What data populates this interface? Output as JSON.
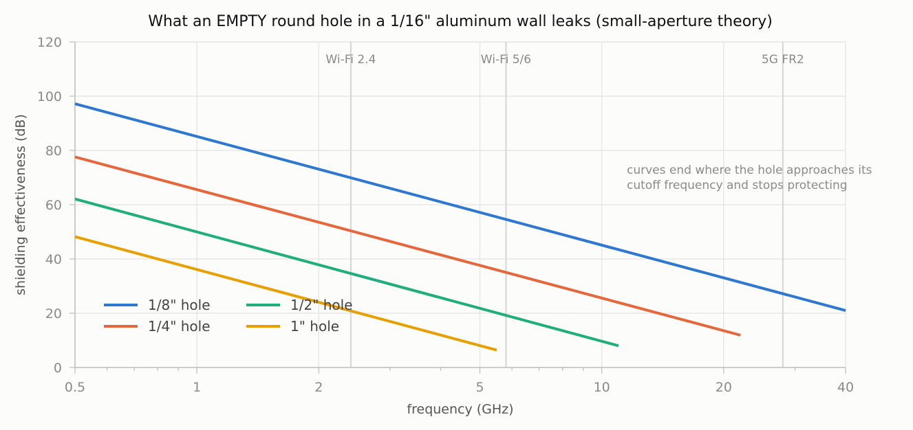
{
  "chart_data": {
    "type": "line",
    "title": "What an EMPTY round hole in a 1/16\" aluminum wall leaks (small-aperture theory)",
    "xlabel": "frequency (GHz)",
    "ylabel": "shielding effectiveness (dB)",
    "x_scale": "log",
    "xlim": [
      0.5,
      40
    ],
    "ylim": [
      0,
      120
    ],
    "x_ticks": [
      0.5,
      1,
      2,
      5,
      10,
      20,
      40
    ],
    "x_tick_labels": [
      "0.5",
      "1",
      "2",
      "5",
      "10",
      "20",
      "40"
    ],
    "y_ticks": [
      0,
      20,
      40,
      60,
      80,
      100,
      120
    ],
    "y_tick_labels": [
      "0",
      "20",
      "40",
      "60",
      "80",
      "100",
      "120"
    ],
    "grid": true,
    "legend_position": "lower-left",
    "series": [
      {
        "name": "1/8\" hole",
        "color": "#2e78d2",
        "x": [
          0.5,
          40
        ],
        "y": [
          97.2,
          21.0
        ]
      },
      {
        "name": "1/4\" hole",
        "color": "#e5673b",
        "x": [
          0.5,
          22
        ],
        "y": [
          77.6,
          11.9
        ]
      },
      {
        "name": "1/2\" hole",
        "color": "#1fae7c",
        "x": [
          0.5,
          11
        ],
        "y": [
          62.1,
          8.0
        ]
      },
      {
        "name": "1\" hole",
        "color": "#e8a000",
        "x": [
          0.5,
          5.5
        ],
        "y": [
          48.2,
          6.4
        ]
      }
    ],
    "bands": [
      {
        "label": "Wi-Fi 2.4",
        "x": 2.4
      },
      {
        "label": "Wi-Fi 5/6",
        "x": 5.8
      },
      {
        "label": "5G FR2",
        "x": 28
      }
    ],
    "annotation": {
      "lines": [
        "curves end where the hole approaches its",
        "cutoff frequency and stops protecting"
      ]
    }
  }
}
